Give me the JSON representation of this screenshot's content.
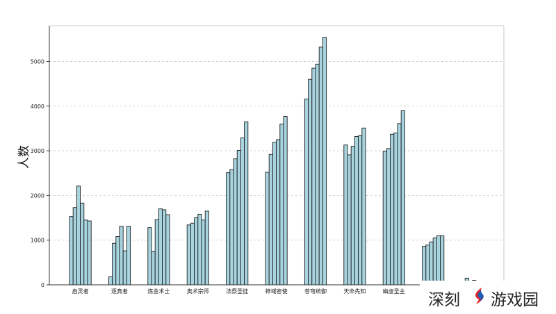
{
  "chart_data": {
    "type": "bar",
    "ylabel": "人数",
    "xlabel": "",
    "title": "",
    "ylim": [
      0,
      5800
    ],
    "yticks": [
      0,
      1000,
      2000,
      3000,
      4000,
      5000
    ],
    "grid": "y-dashed",
    "colors": {
      "bar_fill": "#a8d4e0",
      "bar_edge": "#1a1a1a",
      "axis": "#333333",
      "grid": "#c8c8c8"
    },
    "groups": [
      {
        "label": "启灵者",
        "values": [
          1530,
          1730,
          2210,
          1830,
          1450,
          1430
        ]
      },
      {
        "label": "逐真者",
        "values": [
          180,
          930,
          1080,
          1310,
          760,
          1310
        ]
      },
      {
        "label": "炼金术士",
        "values": [
          1280,
          750,
          1460,
          1700,
          1680,
          1570
        ]
      },
      {
        "label": "奥术宗师",
        "values": [
          1340,
          1380,
          1500,
          1580,
          1450,
          1650
        ]
      },
      {
        "label": "法祭圣徒",
        "values": [
          2510,
          2580,
          2820,
          3010,
          3290,
          3650
        ]
      },
      {
        "label": "神域密使",
        "values": [
          2520,
          2920,
          3190,
          3250,
          3600,
          3770
        ]
      },
      {
        "label": "苍穹统御",
        "values": [
          4160,
          4600,
          4850,
          4940,
          5320,
          5540
        ]
      },
      {
        "label": "天命先知",
        "values": [
          3130,
          2910,
          3100,
          3320,
          3340,
          3510
        ]
      },
      {
        "label": "幽虚圣主",
        "values": [
          2990,
          3050,
          3370,
          3400,
          3610,
          3900
        ]
      },
      {
        "label": "",
        "values": [
          860,
          890,
          960,
          1050,
          1100,
          1100
        ]
      },
      {
        "label": "",
        "values": [
          0,
          150,
          0,
          100,
          0,
          0
        ]
      }
    ]
  },
  "watermark": {
    "left": "深刻",
    "right": "游戏园",
    "logo_icon": "blue-red-stripe-logo-icon"
  }
}
